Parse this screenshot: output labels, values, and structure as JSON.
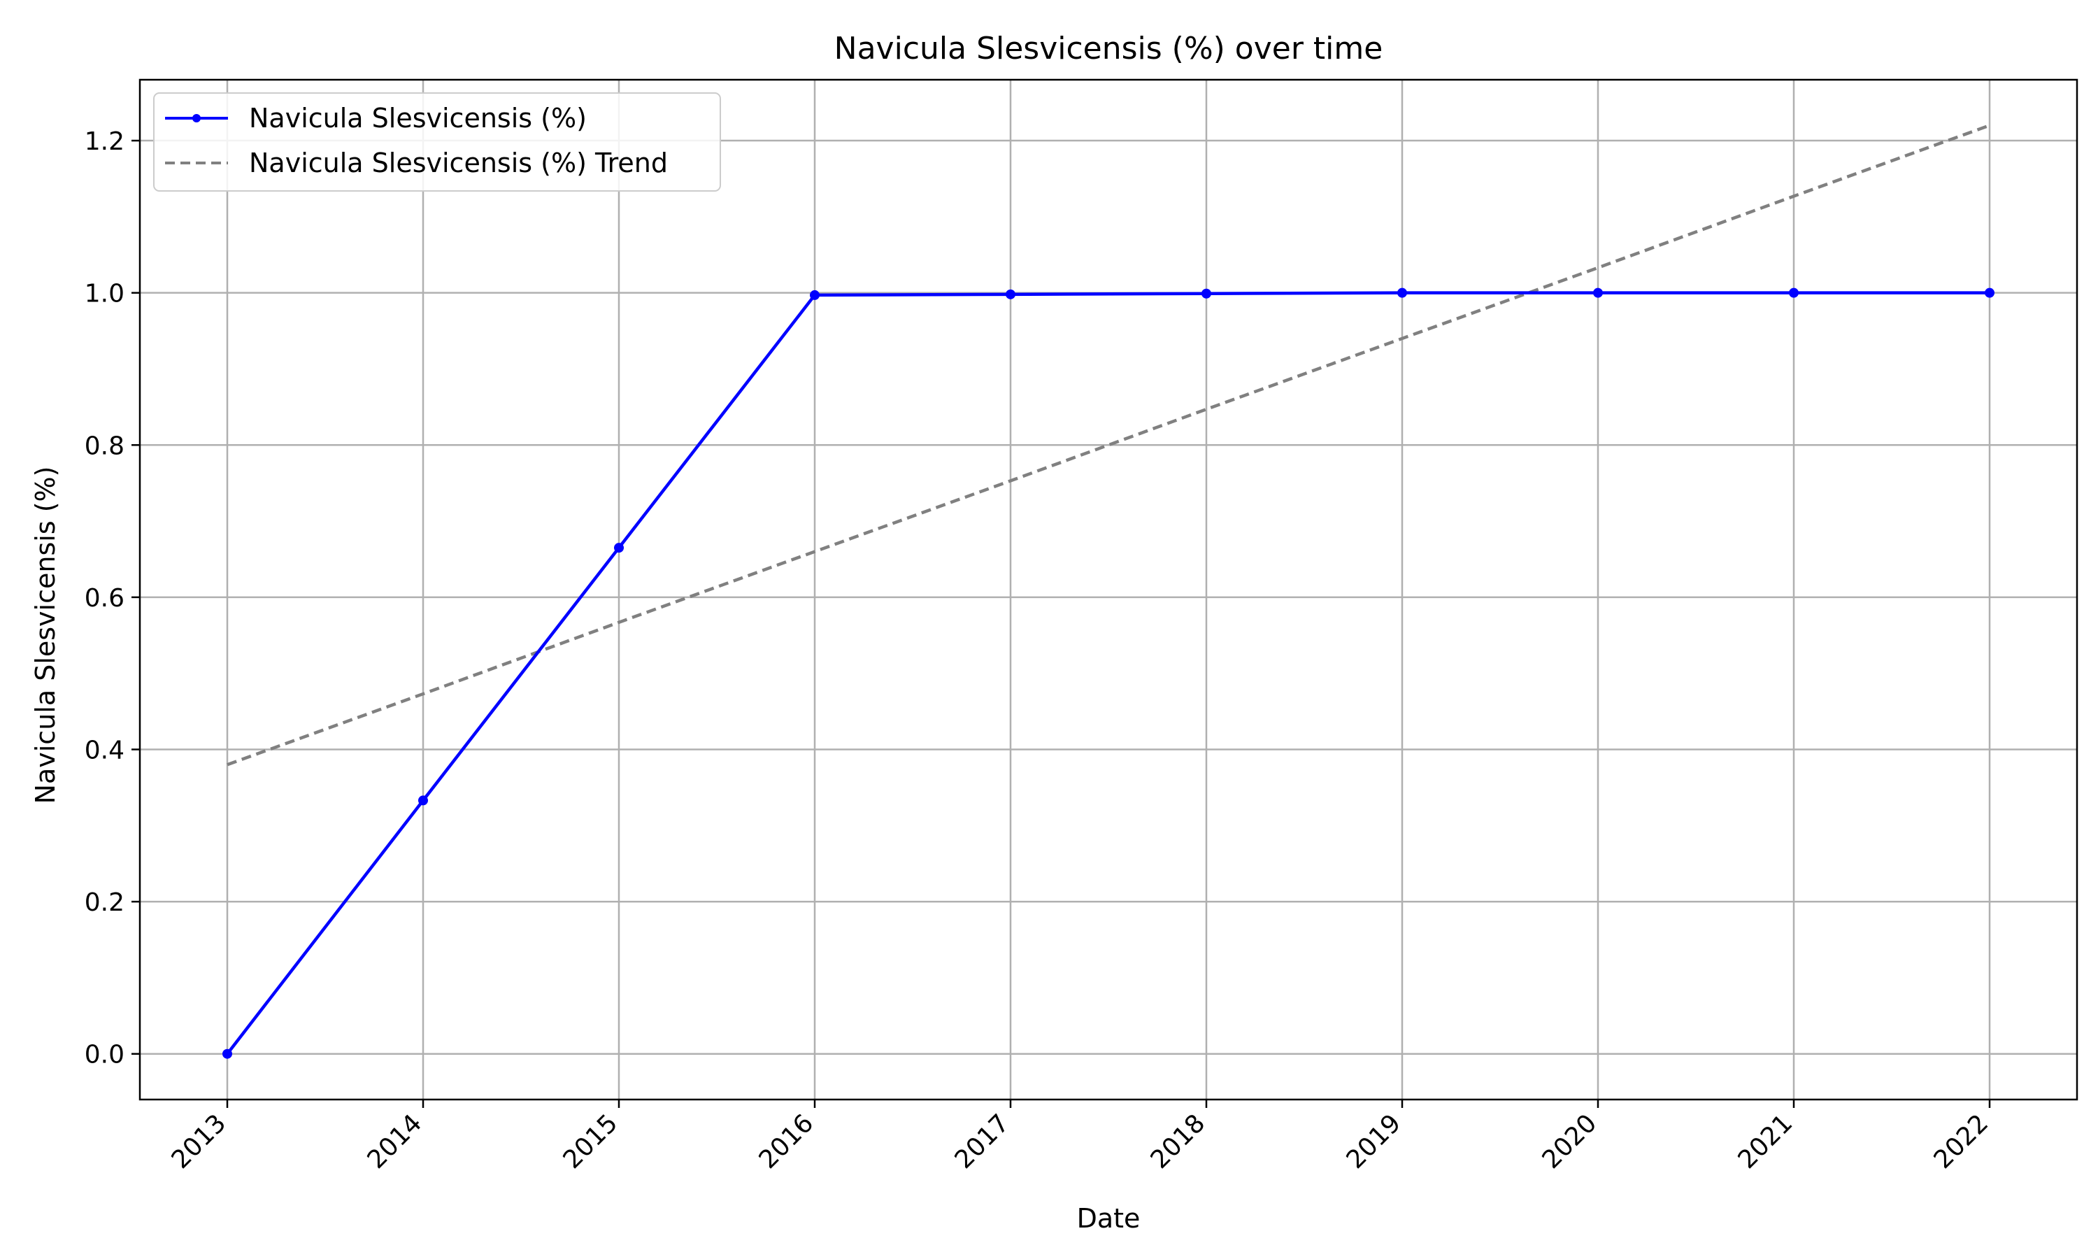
{
  "chart_data": {
    "type": "line",
    "title": "Navicula Slesvicensis (%) over time",
    "xlabel": "Date",
    "ylabel": "Navicula Slesvicensis (%)",
    "x": [
      "2013",
      "2014",
      "2015",
      "2016",
      "2017",
      "2018",
      "2019",
      "2020",
      "2021",
      "2022"
    ],
    "x_ticks": [
      "2013",
      "2014",
      "2015",
      "2016",
      "2017",
      "2018",
      "2019",
      "2020",
      "2021",
      "2022"
    ],
    "y_ticks": [
      "0.0",
      "0.2",
      "0.4",
      "0.6",
      "0.8",
      "1.0",
      "1.2"
    ],
    "ylim": [
      -0.06,
      1.28
    ],
    "grid": true,
    "legend_position": "top-left",
    "series": [
      {
        "name": "Navicula Slesvicensis (%)",
        "style": "solid",
        "marker": "circle",
        "color": "#0000ff",
        "values": [
          0.0,
          0.333,
          0.665,
          0.997,
          0.998,
          0.999,
          1.0,
          1.0,
          1.0,
          1.0
        ]
      },
      {
        "name": "Navicula Slesvicensis (%) Trend",
        "style": "dashed",
        "marker": "none",
        "color": "#808080",
        "values": [
          0.38,
          0.473,
          0.567,
          0.66,
          0.753,
          0.847,
          0.94,
          1.033,
          1.127,
          1.22
        ]
      }
    ],
    "colors": {
      "grid": "#b0b0b0",
      "axes": "#000000"
    }
  }
}
